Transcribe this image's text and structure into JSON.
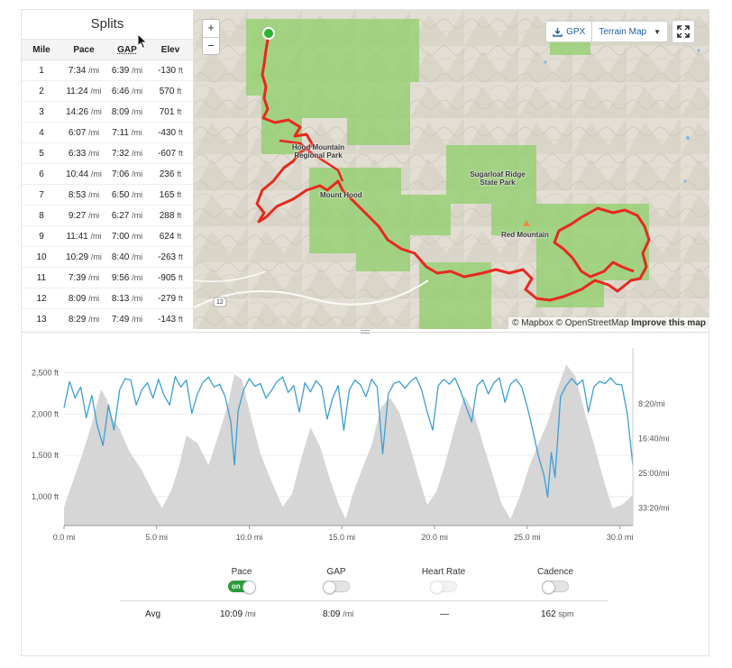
{
  "splits": {
    "title": "Splits",
    "headers": [
      "Mile",
      "Pace",
      "GAP",
      "Elev"
    ],
    "pace_unit": "/mi",
    "elev_unit": "ft",
    "rows": [
      {
        "mile": "1",
        "pace": "7:34",
        "gap": "6:39",
        "elev": "-130"
      },
      {
        "mile": "2",
        "pace": "11:24",
        "gap": "6:46",
        "elev": "570"
      },
      {
        "mile": "3",
        "pace": "14:26",
        "gap": "8:09",
        "elev": "701"
      },
      {
        "mile": "4",
        "pace": "6:07",
        "gap": "7:11",
        "elev": "-430"
      },
      {
        "mile": "5",
        "pace": "6:33",
        "gap": "7:32",
        "elev": "-607"
      },
      {
        "mile": "6",
        "pace": "10:44",
        "gap": "7:06",
        "elev": "236"
      },
      {
        "mile": "7",
        "pace": "8:53",
        "gap": "6:50",
        "elev": "165"
      },
      {
        "mile": "8",
        "pace": "9:27",
        "gap": "6:27",
        "elev": "288"
      },
      {
        "mile": "9",
        "pace": "11:41",
        "gap": "7:00",
        "elev": "624"
      },
      {
        "mile": "10",
        "pace": "10:29",
        "gap": "8:40",
        "elev": "-263"
      },
      {
        "mile": "11",
        "pace": "7:39",
        "gap": "9:56",
        "elev": "-905"
      },
      {
        "mile": "12",
        "pace": "8:09",
        "gap": "8:13",
        "elev": "-279"
      },
      {
        "mile": "13",
        "pace": "8:29",
        "gap": "7:49",
        "elev": "-143"
      }
    ]
  },
  "map": {
    "zoom_in": "+",
    "zoom_out": "−",
    "gpx_label": "GPX",
    "terrain_label": "Terrain Map",
    "labels": {
      "hood_mountain": "Hood Mountain Regional Park",
      "mount_hood": "Mount Hood",
      "sugarloaf": "Sugarloaf Ridge State Park",
      "red_mountain": "Red Mountain",
      "route_12": "12"
    },
    "attribution_mapbox": "© Mapbox",
    "attribution_osm": "© OpenStreetMap",
    "improve": "Improve this map",
    "colors": {
      "route": "#e8281e",
      "park": "#8fcf6a",
      "start": "#27b42a"
    }
  },
  "chart_data": {
    "type": "area",
    "x_ticks": [
      "0.0 mi",
      "5.0 mi",
      "10.0 mi",
      "15.0 mi",
      "20.0 mi",
      "25.0 mi",
      "30.0 mi"
    ],
    "x_tick_values": [
      0,
      5,
      10,
      15,
      20,
      25,
      30
    ],
    "xlim": [
      0,
      30.7
    ],
    "y_left_ticks": [
      "2,500 ft",
      "2,000 ft",
      "1,500 ft",
      "1,000 ft"
    ],
    "y_left_values": [
      2500,
      2000,
      1500,
      1000
    ],
    "y_left_lim": [
      650,
      2800
    ],
    "y_right_ticks": [
      "8:20/mi",
      "16:40/mi",
      "25:00/mi",
      "33:20/mi"
    ],
    "y_right_values": [
      500,
      1000,
      1500,
      2000
    ],
    "y_right_lim": [
      -300,
      2250
    ],
    "series": [
      {
        "name": "",
        "color": "#d6d6d6",
        "x": [
          0,
          0.5,
          1,
          1.5,
          2,
          2.3,
          2.6,
          3,
          3.5,
          4.2,
          4.8,
          5.3,
          5.8,
          6.2,
          6.6,
          7.2,
          7.8,
          8.3,
          8.8,
          9.2,
          9.6,
          10.1,
          10.6,
          11.2,
          11.8,
          12.3,
          12.8,
          13.3,
          13.8,
          14.3,
          14.8,
          15.2,
          15.6,
          16.1,
          16.6,
          17.1,
          17.6,
          18.1,
          18.6,
          19.1,
          19.6,
          20.1,
          20.6,
          21.1,
          21.6,
          22.1,
          22.6,
          23.1,
          23.6,
          24.1,
          24.6,
          25.1,
          25.6,
          26.1,
          26.6,
          27.1,
          27.6,
          28.1,
          28.6,
          29.1,
          29.6,
          30.1,
          30.7
        ],
        "values": [
          870,
          1200,
          1520,
          1880,
          2300,
          2180,
          1950,
          1820,
          1560,
          1320,
          1050,
          860,
          1080,
          1360,
          1740,
          1650,
          1380,
          1720,
          2080,
          2480,
          2420,
          1950,
          1520,
          1180,
          880,
          1030,
          1460,
          1840,
          1620,
          1250,
          920,
          730,
          1040,
          1340,
          1620,
          2080,
          2200,
          2020,
          1660,
          1270,
          900,
          1060,
          1420,
          1850,
          2220,
          2030,
          1650,
          1290,
          920,
          730,
          1000,
          1360,
          1640,
          1900,
          2280,
          2600,
          2460,
          2020,
          1640,
          1220,
          860,
          900,
          1020
        ]
      },
      {
        "name": "",
        "color": "#3a9fd6",
        "x": [
          0,
          0.3,
          0.6,
          0.9,
          1.2,
          1.5,
          1.8,
          2.1,
          2.4,
          2.7,
          3.0,
          3.3,
          3.6,
          3.9,
          4.2,
          4.5,
          4.8,
          5.1,
          5.4,
          5.7,
          6.0,
          6.3,
          6.6,
          6.9,
          7.2,
          7.5,
          7.8,
          8.1,
          8.4,
          8.7,
          9.0,
          9.2,
          9.4,
          9.7,
          10.0,
          10.3,
          10.6,
          10.9,
          11.2,
          11.5,
          11.8,
          12.1,
          12.4,
          12.7,
          13.0,
          13.3,
          13.6,
          13.9,
          14.2,
          14.5,
          14.8,
          15.1,
          15.4,
          15.7,
          16.0,
          16.3,
          16.6,
          16.9,
          17.2,
          17.5,
          17.8,
          18.1,
          18.4,
          18.7,
          19.0,
          19.3,
          19.6,
          19.9,
          20.2,
          20.5,
          20.8,
          21.1,
          21.4,
          21.7,
          22.0,
          22.3,
          22.6,
          22.9,
          23.2,
          23.5,
          23.8,
          24.1,
          24.4,
          24.7,
          25.0,
          25.3,
          25.6,
          25.9,
          26.1,
          26.3,
          26.5,
          26.8,
          27.1,
          27.4,
          27.7,
          28.0,
          28.3,
          28.6,
          28.9,
          29.2,
          29.5,
          29.8,
          30.1,
          30.4,
          30.7
        ],
        "values": [
          560,
          180,
          420,
          260,
          700,
          380,
          820,
          1100,
          520,
          880,
          300,
          140,
          160,
          520,
          300,
          200,
          420,
          150,
          380,
          520,
          110,
          260,
          160,
          640,
          360,
          190,
          120,
          260,
          220,
          400,
          760,
          1380,
          600,
          300,
          140,
          250,
          210,
          420,
          310,
          180,
          120,
          340,
          240,
          620,
          200,
          330,
          170,
          260,
          720,
          420,
          240,
          880,
          300,
          160,
          230,
          400,
          150,
          260,
          1220,
          360,
          210,
          180,
          280,
          180,
          120,
          300,
          620,
          880,
          240,
          150,
          220,
          130,
          320,
          540,
          760,
          240,
          160,
          360,
          200,
          130,
          480,
          220,
          150,
          260,
          540,
          880,
          1250,
          1520,
          1840,
          1200,
          1560,
          400,
          240,
          140,
          230,
          160,
          620,
          260,
          180,
          210,
          130,
          220,
          230,
          640,
          1380
        ]
      }
    ]
  },
  "streams": {
    "pace": {
      "label": "Pace",
      "state": "on",
      "on_text": "on"
    },
    "gap": {
      "label": "GAP"
    },
    "heart_rate": {
      "label": "Heart Rate"
    },
    "cadence": {
      "label": "Cadence"
    }
  },
  "averages": {
    "label": "Avg",
    "pace": "10:09",
    "pace_unit": "/mi",
    "gap": "8:09",
    "gap_unit": "/mi",
    "heart_rate": "—",
    "cadence": "162",
    "cadence_unit": "spm"
  }
}
